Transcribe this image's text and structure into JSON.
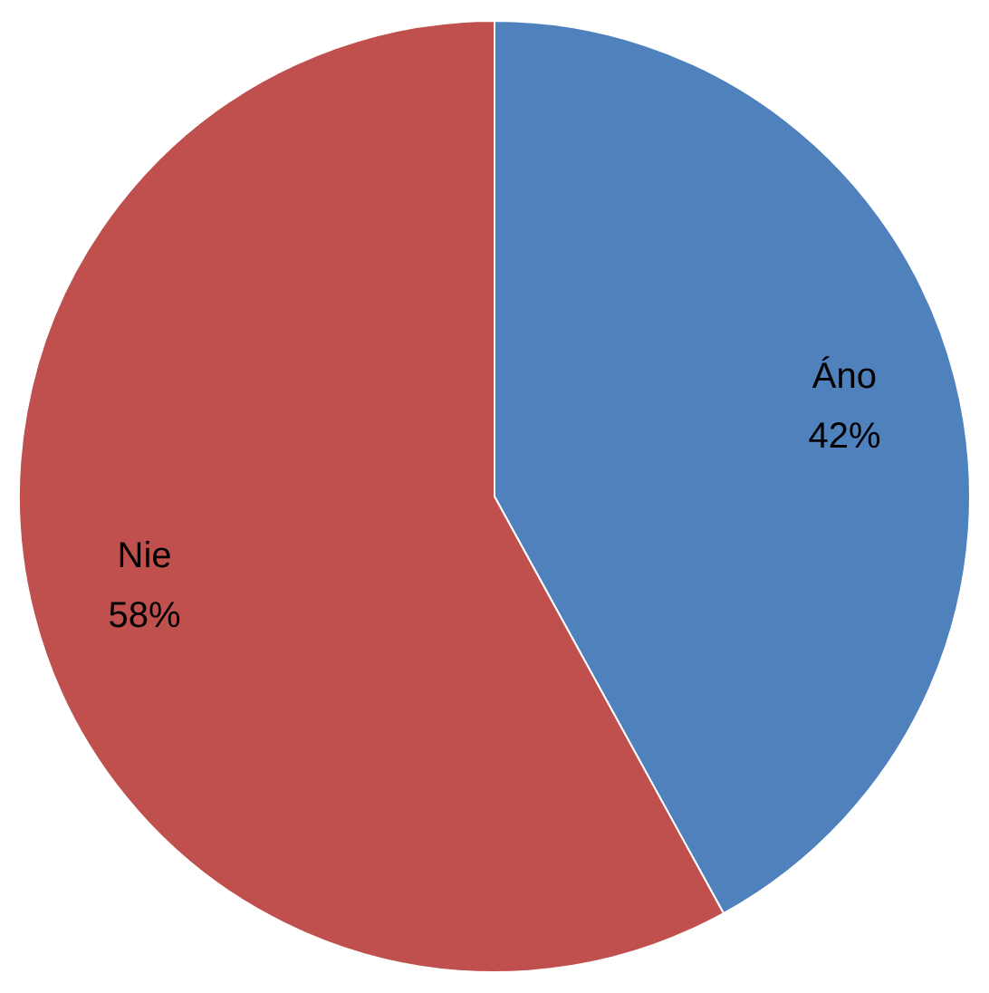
{
  "chart_data": {
    "type": "pie",
    "categories": [
      "Áno",
      "Nie"
    ],
    "values": [
      42,
      58
    ],
    "colors": [
      "#4f81bd",
      "#c0504d"
    ],
    "value_labels": [
      "42%",
      "58%"
    ],
    "legend": false
  }
}
